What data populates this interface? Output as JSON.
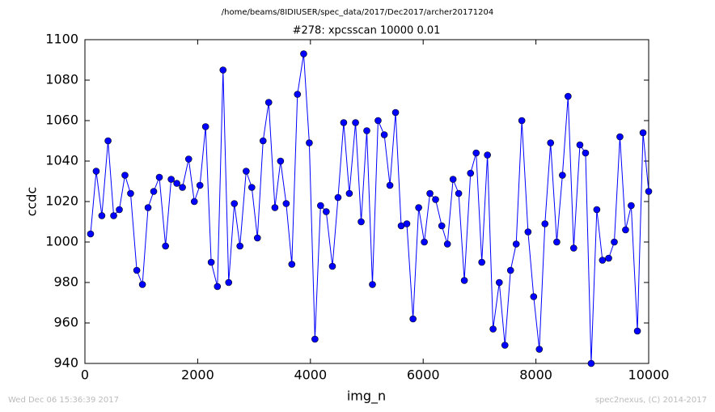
{
  "chart_data": {
    "type": "line",
    "suptitle": "/home/beams/8IDIUSER/spec_data/2017/Dec2017/archer20171204",
    "title": "#278: xpcsscan 10000 0.01",
    "x_label": "img_n",
    "y_label": "ccdc",
    "footer_left": "Wed Dec 06 15:36:39 2017",
    "footer_right": "spec2nexus, (C) 2014-2017",
    "x": [
      100,
      200,
      300,
      410,
      510,
      610,
      710,
      810,
      920,
      1020,
      1120,
      1220,
      1320,
      1430,
      1530,
      1630,
      1730,
      1840,
      1940,
      2040,
      2140,
      2240,
      2350,
      2450,
      2550,
      2650,
      2750,
      2860,
      2960,
      3060,
      3160,
      3260,
      3370,
      3470,
      3570,
      3670,
      3770,
      3880,
      3980,
      4080,
      4180,
      4280,
      4390,
      4490,
      4590,
      4690,
      4800,
      4900,
      5000,
      5100,
      5200,
      5310,
      5410,
      5510,
      5610,
      5710,
      5820,
      5920,
      6020,
      6120,
      6220,
      6330,
      6430,
      6530,
      6630,
      6730,
      6840,
      6940,
      7040,
      7140,
      7240,
      7350,
      7450,
      7550,
      7650,
      7750,
      7860,
      7960,
      8060,
      8160,
      8260,
      8370,
      8470,
      8570,
      8670,
      8780,
      8880,
      8980,
      9080,
      9180,
      9290,
      9390,
      9490,
      9590,
      9690,
      9800,
      9900,
      10000
    ],
    "series": [
      {
        "name": "ccdc",
        "color": "#0000ff",
        "values": [
          1004,
          1035,
          1013,
          1050,
          1013,
          1016,
          1033,
          1024,
          986,
          979,
          1017,
          1025,
          1032,
          998,
          1031,
          1029,
          1027,
          1041,
          1020,
          1028,
          1057,
          990,
          978,
          1085,
          980,
          1019,
          998,
          1035,
          1027,
          1002,
          1050,
          1069,
          1017,
          1040,
          1019,
          989,
          1073,
          1093,
          1049,
          952,
          1018,
          1015,
          988,
          1022,
          1059,
          1024,
          1059,
          1010,
          1055,
          979,
          1060,
          1053,
          1028,
          1064,
          1008,
          1009,
          962,
          1017,
          1000,
          1024,
          1021,
          1008,
          999,
          1031,
          1024,
          981,
          1034,
          1044,
          990,
          1043,
          957,
          980,
          949,
          986,
          999,
          1060,
          1005,
          973,
          947,
          1009,
          1049,
          1000,
          1033,
          1072,
          997,
          1048,
          1044,
          940,
          1016,
          991,
          992,
          1000,
          1052,
          1006,
          1018,
          956,
          1054,
          1025
        ]
      }
    ],
    "xlim": [
      0,
      10000
    ],
    "ylim": [
      940,
      1100
    ],
    "xticks": [
      0,
      2000,
      4000,
      6000,
      8000,
      10000
    ],
    "yticks": [
      940,
      960,
      980,
      1000,
      1020,
      1040,
      1060,
      1080,
      1100
    ],
    "grid": false
  }
}
